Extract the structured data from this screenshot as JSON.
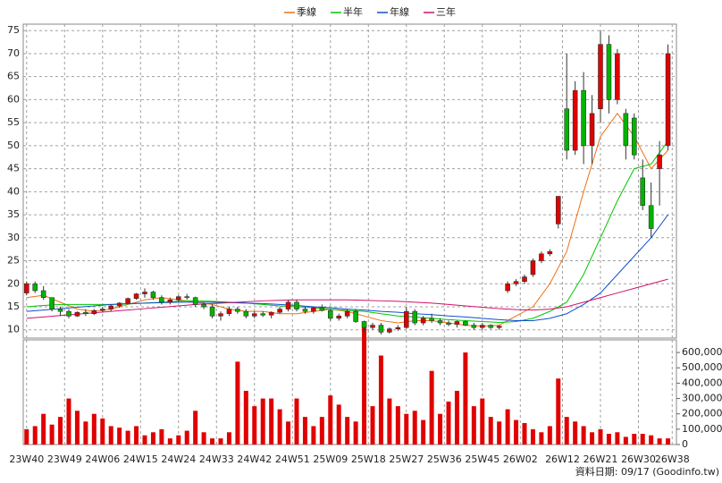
{
  "chart_data": {
    "type": "candlestick",
    "x": [
      0,
      2,
      4,
      6,
      8,
      10,
      12,
      14,
      16,
      18,
      20,
      22,
      24,
      26,
      28,
      30,
      32,
      34,
      36,
      38,
      40,
      42,
      44,
      46,
      48,
      50,
      52,
      54,
      56,
      58,
      60,
      62,
      64,
      66,
      68,
      70,
      72,
      74,
      76,
      78,
      80,
      82,
      84,
      86,
      88,
      90,
      92,
      94,
      96,
      98,
      100,
      102,
      104,
      106,
      108,
      110,
      112,
      114,
      116,
      118,
      120,
      122,
      124,
      126,
      128,
      130,
      132,
      134,
      136,
      138,
      140,
      142,
      144,
      146,
      148,
      150,
      152
    ],
    "open": [
      18,
      20,
      18.5,
      17,
      14.5,
      14,
      13,
      13.8,
      13.5,
      14.2,
      14.5,
      15.2,
      15.8,
      16.8,
      17.8,
      18.2,
      17,
      16,
      16.5,
      17.2,
      17,
      15.5,
      15,
      13,
      13.5,
      14.5,
      14,
      13,
      13.5,
      13.2,
      13.8,
      14.5,
      16,
      14.5,
      14,
      14.8,
      14.2,
      12.5,
      13,
      14,
      11.8,
      10.5,
      11,
      9.5,
      10.2,
      10.5,
      14,
      11.5,
      12.5,
      12,
      11.5,
      11.2,
      11.8,
      11,
      10.5,
      11,
      10.5,
      18.5,
      20,
      20.5,
      22,
      25,
      26.5,
      33,
      58,
      49,
      62,
      50,
      58,
      72,
      60,
      57,
      56,
      43,
      37,
      45,
      50
    ],
    "high": [
      20.5,
      20.5,
      19.5,
      17,
      15,
      14.5,
      14,
      14.5,
      14.5,
      15,
      15.5,
      16,
      17,
      18,
      19,
      18.5,
      17.5,
      17,
      17.5,
      17.8,
      17.2,
      16,
      15.5,
      14,
      15,
      15,
      14.5,
      14,
      14,
      14,
      15,
      16.5,
      16.5,
      15,
      15,
      15.5,
      14.5,
      13.5,
      14.5,
      14.5,
      12,
      11.5,
      11.5,
      10.5,
      11,
      15,
      14.5,
      13,
      13.5,
      12.5,
      12,
      12,
      12,
      11.5,
      11.5,
      11.2,
      11,
      20.5,
      21,
      22,
      25.5,
      27,
      27.5,
      39,
      70,
      64,
      66,
      61,
      75,
      74,
      71,
      58,
      57,
      47,
      42,
      51,
      72
    ],
    "low": [
      17.5,
      18,
      16.5,
      14,
      13,
      12.5,
      12.8,
      13,
      13.2,
      13.8,
      14,
      14.8,
      15.5,
      16.5,
      17,
      16.5,
      15.5,
      15.5,
      16,
      16.5,
      15,
      14.5,
      12.5,
      12,
      13,
      13.5,
      12.5,
      12.5,
      12.8,
      12.5,
      13.5,
      14,
      14,
      13.5,
      13.5,
      14,
      12,
      12,
      12.5,
      11.5,
      9.5,
      10,
      9,
      9.2,
      9.8,
      10.2,
      11,
      11,
      11.5,
      11,
      10.8,
      10.5,
      10.8,
      10,
      10,
      10.2,
      10,
      18,
      19.5,
      20,
      21.5,
      24.5,
      26,
      32,
      47,
      48,
      46,
      46,
      55,
      57,
      59,
      47,
      47,
      36,
      30,
      37,
      49
    ],
    "close": [
      20,
      18.5,
      17,
      14.5,
      14,
      13,
      13.8,
      13.5,
      14.2,
      14.5,
      15.2,
      15.8,
      16.8,
      17.8,
      18.2,
      17,
      16,
      16.5,
      17.2,
      17,
      15.5,
      15,
      13,
      13.5,
      14.5,
      14,
      13,
      13.5,
      13.2,
      13.8,
      14.5,
      16,
      14.5,
      14,
      14.8,
      14.2,
      12.5,
      13,
      14,
      11.8,
      10.5,
      11,
      9.5,
      10.2,
      10.5,
      14,
      11.5,
      12.5,
      12,
      11.5,
      11.2,
      11.8,
      11,
      10.5,
      11,
      10.5,
      10.8,
      20,
      20.5,
      21.5,
      25,
      26.5,
      27,
      39,
      49,
      62,
      50,
      57,
      72,
      60,
      70,
      50,
      48,
      37,
      32,
      48,
      70
    ],
    "up_color": "#e00000",
    "down_color": "#00b400",
    "xlim": [
      -0.8,
      154
    ],
    "xticks": [
      {
        "value": 0,
        "label": "23W40"
      },
      {
        "value": 9,
        "label": "23W49"
      },
      {
        "value": 18,
        "label": "24W06"
      },
      {
        "value": 27,
        "label": "24W15"
      },
      {
        "value": 36,
        "label": "24W24"
      },
      {
        "value": 45,
        "label": "24W33"
      },
      {
        "value": 54,
        "label": "24W42"
      },
      {
        "value": 63,
        "label": "24W51"
      },
      {
        "value": 72,
        "label": "25W09"
      },
      {
        "value": 81,
        "label": "25W18"
      },
      {
        "value": 90,
        "label": "25W27"
      },
      {
        "value": 99,
        "label": "25W36"
      },
      {
        "value": 108,
        "label": "25W45"
      },
      {
        "value": 117,
        "label": "26W02"
      },
      {
        "value": 127,
        "label": "26W12"
      },
      {
        "value": 136,
        "label": "26W21"
      },
      {
        "value": 145,
        "label": "26W30"
      },
      {
        "value": 153,
        "label": "26W38"
      }
    ],
    "ylim": [
      8.2,
      76.4
    ],
    "yticks": [
      10,
      15,
      20,
      25,
      30,
      35,
      40,
      45,
      50,
      55,
      60,
      65,
      70,
      75
    ],
    "grid": true,
    "lines": [
      {
        "name": "季線",
        "color": "#f07010",
        "x": [
          0,
          4,
          8,
          12,
          16,
          20,
          24,
          28,
          32,
          36,
          40,
          44,
          48,
          52,
          56,
          60,
          64,
          68,
          72,
          76,
          80,
          84,
          88,
          92,
          96,
          100,
          104,
          108,
          112,
          116,
          120,
          124,
          128,
          132,
          136,
          140,
          144,
          148,
          152
        ],
        "values": [
          17,
          17.5,
          16,
          14.5,
          14,
          14.5,
          15.5,
          16.5,
          17,
          16.5,
          16,
          15.5,
          14.5,
          14,
          14,
          13.5,
          13.5,
          14,
          14.5,
          14,
          13,
          12,
          11.5,
          12,
          12,
          11.5,
          11,
          10.8,
          11,
          13,
          15,
          20,
          27,
          40,
          52,
          57,
          52,
          45,
          49
        ]
      },
      {
        "name": "半年",
        "color": "#00c800",
        "x": [
          0,
          4,
          8,
          12,
          16,
          20,
          24,
          28,
          32,
          36,
          40,
          44,
          48,
          52,
          56,
          60,
          64,
          68,
          72,
          76,
          80,
          84,
          88,
          92,
          96,
          100,
          104,
          108,
          112,
          116,
          120,
          124,
          128,
          132,
          136,
          140,
          144,
          148,
          152
        ],
        "values": [
          15,
          15.3,
          15.5,
          15.5,
          15.5,
          15.5,
          15.6,
          15.8,
          16,
          16.2,
          16.3,
          16.2,
          16,
          15.8,
          15.5,
          15.2,
          15,
          14.8,
          14.5,
          14.2,
          14,
          13.5,
          13,
          12.8,
          12.5,
          12.2,
          12,
          11.8,
          11.6,
          11.8,
          12.5,
          14,
          16,
          22,
          30,
          38,
          45,
          46,
          51
        ]
      },
      {
        "name": "年線",
        "color": "#1050d0",
        "x": [
          0,
          4,
          8,
          12,
          16,
          20,
          24,
          28,
          32,
          36,
          40,
          44,
          48,
          52,
          56,
          60,
          64,
          68,
          72,
          76,
          80,
          84,
          88,
          92,
          96,
          100,
          104,
          108,
          112,
          116,
          120,
          124,
          128,
          132,
          136,
          140,
          144,
          148,
          152
        ],
        "values": [
          14,
          14.3,
          14.6,
          14.9,
          15.2,
          15.5,
          15.7,
          15.8,
          15.9,
          16,
          16,
          16,
          15.9,
          15.8,
          15.7,
          15.5,
          15.3,
          15,
          14.8,
          14.5,
          14.3,
          14,
          13.8,
          13.5,
          13.3,
          13,
          12.8,
          12.5,
          12.2,
          12,
          12,
          12.5,
          13.5,
          15.5,
          18,
          22,
          26,
          30,
          35
        ]
      },
      {
        "name": "三年",
        "color": "#d0106a",
        "x": [
          0,
          4,
          8,
          12,
          16,
          20,
          24,
          28,
          32,
          36,
          40,
          44,
          48,
          52,
          56,
          60,
          64,
          68,
          72,
          76,
          80,
          84,
          88,
          92,
          96,
          100,
          104,
          108,
          112,
          116,
          120,
          124,
          128,
          132,
          136,
          140,
          144,
          148,
          152
        ],
        "values": [
          12.5,
          12.8,
          13.1,
          13.4,
          13.7,
          14,
          14.3,
          14.6,
          14.9,
          15.2,
          15.5,
          15.7,
          15.9,
          16.1,
          16.3,
          16.4,
          16.5,
          16.5,
          16.5,
          16.5,
          16.4,
          16.3,
          16.2,
          16,
          15.8,
          15.5,
          15.2,
          14.9,
          14.6,
          14.4,
          14.3,
          14.5,
          15,
          16,
          17,
          18,
          19,
          20,
          21
        ]
      }
    ],
    "volume": {
      "color": "#e00000",
      "values": [
        100000,
        120000,
        200000,
        130000,
        180000,
        300000,
        220000,
        150000,
        200000,
        170000,
        120000,
        110000,
        90000,
        120000,
        60000,
        80000,
        100000,
        40000,
        60000,
        90000,
        220000,
        80000,
        40000,
        40000,
        80000,
        540000,
        350000,
        250000,
        300000,
        300000,
        230000,
        150000,
        300000,
        180000,
        120000,
        180000,
        320000,
        260000,
        180000,
        150000,
        800000,
        250000,
        580000,
        300000,
        250000,
        200000,
        220000,
        160000,
        480000,
        200000,
        280000,
        350000,
        600000,
        250000,
        300000,
        180000,
        150000,
        230000,
        160000,
        140000,
        100000,
        80000,
        120000,
        430000,
        180000,
        150000,
        120000,
        80000,
        100000,
        70000,
        80000,
        50000,
        70000,
        70000,
        60000,
        40000,
        40000
      ],
      "ylim": [
        0,
        682000
      ],
      "yticks": [
        0,
        {
          "value": 100000,
          "label": "100,000"
        },
        {
          "value": 200000,
          "label": "200,000"
        },
        {
          "value": 300000,
          "label": "300,000"
        },
        {
          "value": 400000,
          "label": "400,000"
        },
        {
          "value": 500000,
          "label": "500,000"
        },
        {
          "value": 600000,
          "label": "600,000"
        }
      ]
    },
    "footer": "資料日期: 09/17  (Goodinfo.tw)"
  }
}
